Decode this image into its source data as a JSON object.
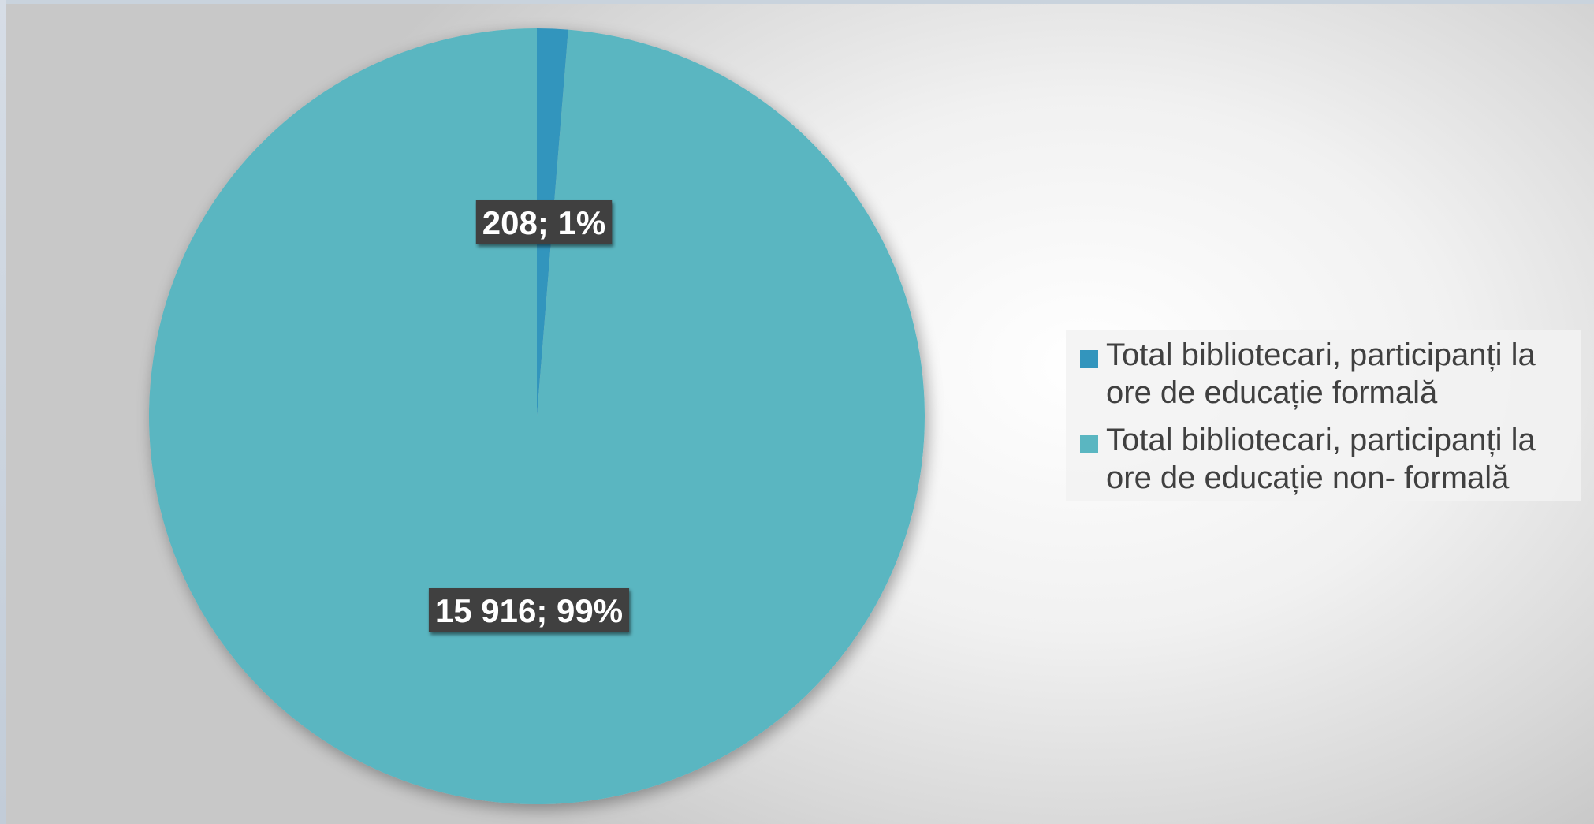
{
  "chart_data": {
    "type": "pie",
    "title": "",
    "slices": [
      {
        "name": "Total bibliotecari, participanți la ore de educație formală",
        "value": 208,
        "percent": 1,
        "label": "208; 1%",
        "color": "#3395bd"
      },
      {
        "name": "Total bibliotecari, participanți la ore de educație non- formală",
        "value": 15916,
        "percent": 99,
        "label": "15 916; 99%",
        "color": "#5ab6c1"
      }
    ],
    "legend": "right"
  }
}
